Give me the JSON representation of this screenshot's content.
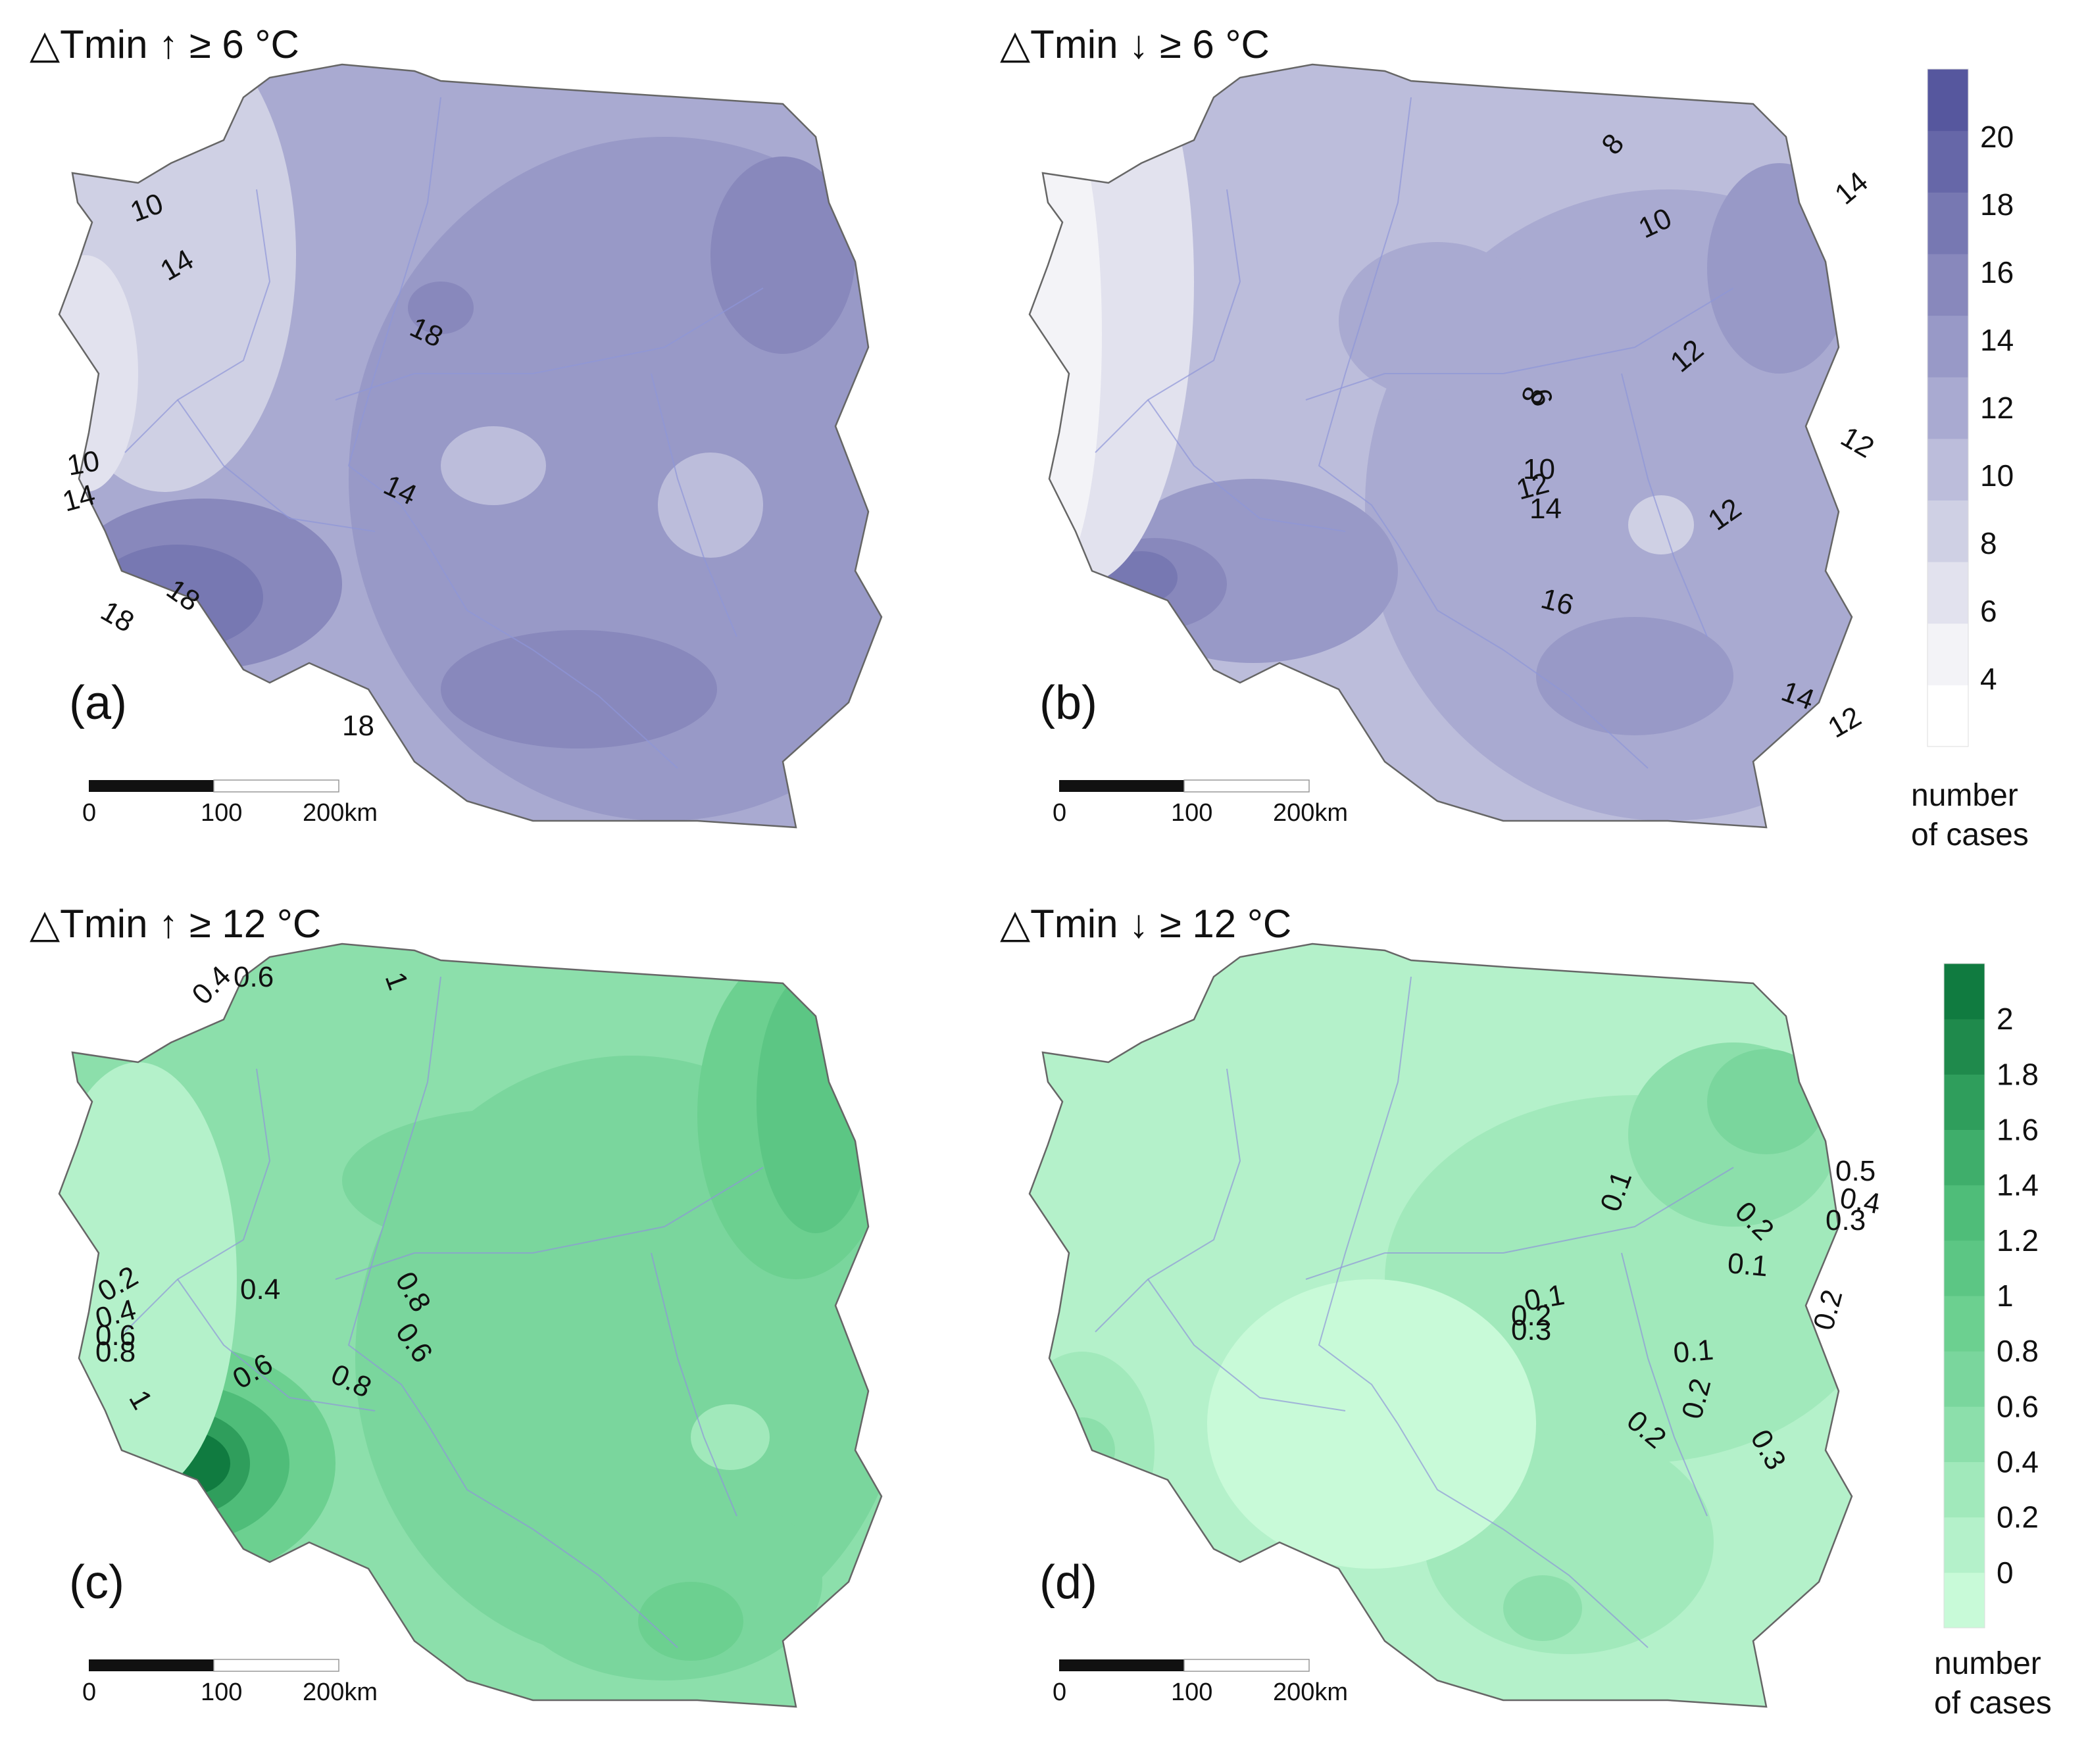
{
  "palettes": {
    "blue": [
      "#ffffff",
      "#f3f3f7",
      "#e2e2ee",
      "#cfd0e4",
      "#bcbddb",
      "#a9aad1",
      "#9899c7",
      "#8888bc",
      "#7778b2",
      "#6667a8",
      "#56579e"
    ],
    "green": [
      "#c8fad8",
      "#b4f1ca",
      "#a1e9bb",
      "#8cdfab",
      "#7ad69d",
      "#6cd090",
      "#5cc684",
      "#4fbd79",
      "#3fae6b",
      "#2f9e5c",
      "#1f8a4c",
      "#107b40"
    ],
    "boundary": "#666666",
    "river": "#8f95d8"
  },
  "panels": [
    {
      "label": "(a)",
      "title": "△Tmin ↑ ≥ 6 °C",
      "palette": "blue",
      "base_level": 5,
      "isolines": [
        "10",
        "14",
        "18",
        "10",
        "14",
        "18",
        "18",
        "14",
        "18"
      ],
      "scale": [
        "0",
        "100",
        "200km"
      ]
    },
    {
      "label": "(b)",
      "title": "△Tmin ↓ ≥ 6 °C",
      "palette": "blue",
      "base_level": 4,
      "isolines": [
        "8",
        "10",
        "14",
        "12",
        "12",
        "6",
        "8",
        "10",
        "12",
        "14",
        "16",
        "12",
        "14",
        "12"
      ],
      "scale": [
        "0",
        "100",
        "200km"
      ]
    },
    {
      "label": "(c)",
      "title": "△Tmin ↑ ≥ 12 °C",
      "palette": "green",
      "base_level": 3,
      "isolines": [
        "0.4",
        "0.6",
        "1",
        "0.2",
        "0.4",
        "0.6",
        "0.8",
        "0.4",
        "0.8",
        "0.6",
        "1",
        "0.6",
        "0.8"
      ],
      "scale": [
        "0",
        "100",
        "200km"
      ]
    },
    {
      "label": "(d)",
      "title": "△Tmin ↓ ≥ 12 °C",
      "palette": "green",
      "base_level": 1,
      "isolines": [
        "0.5",
        "0.4",
        "0.3",
        "0.1",
        "0.2",
        "0.1",
        "0.1",
        "0.2",
        "0.3",
        "0.2",
        "0.1",
        "0.2",
        "0.2",
        "0.3"
      ],
      "scale": [
        "0",
        "100",
        "200km"
      ]
    }
  ],
  "legend_top": {
    "ticks": [
      "20",
      "18",
      "16",
      "14",
      "12",
      "10",
      "8",
      "6",
      "4"
    ],
    "unit_line1": "number",
    "unit_line2": "of cases"
  },
  "legend_bottom": {
    "ticks": [
      "2",
      "1.8",
      "1.6",
      "1.4",
      "1.2",
      "1",
      "0.8",
      "0.6",
      "0.4",
      "0.2",
      "0"
    ],
    "unit_line1": "number",
    "unit_line2": "of cases"
  }
}
